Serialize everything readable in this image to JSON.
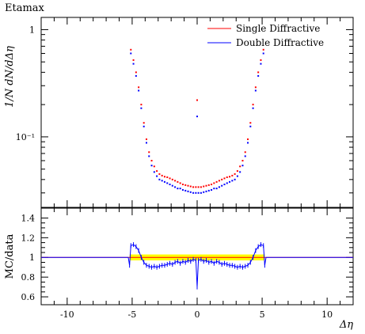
{
  "plot_title": "Etamax",
  "chart_data": [
    {
      "panel": "main",
      "type": "scatter",
      "ylabel": "1/N dN/dΔη",
      "xlim": [
        -12,
        12
      ],
      "ylim": [
        0.022,
        1.3
      ],
      "yscale": "log",
      "ytick_labels": [
        "1",
        "10⁻¹"
      ],
      "ytick_values": [
        1,
        0.1
      ],
      "legend_position": "top-right",
      "series": [
        {
          "name": "Single Diffractive",
          "color": "#ff0000",
          "x": [
            -5.1,
            -4.9,
            -4.7,
            -4.5,
            -4.3,
            -4.1,
            -3.9,
            -3.7,
            -3.5,
            -3.3,
            -3.1,
            -2.9,
            -2.7,
            -2.5,
            -2.3,
            -2.1,
            -1.9,
            -1.7,
            -1.5,
            -1.3,
            -1.1,
            -0.9,
            -0.7,
            -0.5,
            -0.3,
            -0.1,
            0.0,
            0.1,
            0.3,
            0.5,
            0.7,
            0.9,
            1.1,
            1.3,
            1.5,
            1.7,
            1.9,
            2.1,
            2.3,
            2.5,
            2.7,
            2.9,
            3.1,
            3.3,
            3.5,
            3.7,
            3.9,
            4.1,
            4.3,
            4.5,
            4.7,
            4.9,
            5.1
          ],
          "y": [
            0.65,
            0.52,
            0.4,
            0.29,
            0.2,
            0.135,
            0.095,
            0.072,
            0.06,
            0.053,
            0.048,
            0.045,
            0.0435,
            0.0425,
            0.042,
            0.041,
            0.04,
            0.039,
            0.038,
            0.037,
            0.036,
            0.0355,
            0.035,
            0.0345,
            0.034,
            0.034,
            0.22,
            0.034,
            0.034,
            0.0345,
            0.035,
            0.0355,
            0.036,
            0.037,
            0.038,
            0.039,
            0.04,
            0.041,
            0.042,
            0.0425,
            0.0435,
            0.045,
            0.048,
            0.053,
            0.06,
            0.072,
            0.095,
            0.135,
            0.2,
            0.29,
            0.4,
            0.52,
            0.65
          ]
        },
        {
          "name": "Double Diffractive",
          "color": "#0000ff",
          "x": [
            -5.1,
            -4.9,
            -4.7,
            -4.5,
            -4.3,
            -4.1,
            -3.9,
            -3.7,
            -3.5,
            -3.3,
            -3.1,
            -2.9,
            -2.7,
            -2.5,
            -2.3,
            -2.1,
            -1.9,
            -1.7,
            -1.5,
            -1.3,
            -1.1,
            -0.9,
            -0.7,
            -0.5,
            -0.3,
            -0.1,
            0.0,
            0.1,
            0.3,
            0.5,
            0.7,
            0.9,
            1.1,
            1.3,
            1.5,
            1.7,
            1.9,
            2.1,
            2.3,
            2.5,
            2.7,
            2.9,
            3.1,
            3.3,
            3.5,
            3.7,
            3.9,
            4.1,
            4.3,
            4.5,
            4.7,
            4.9,
            5.1
          ],
          "y": [
            0.6,
            0.48,
            0.37,
            0.27,
            0.185,
            0.125,
            0.088,
            0.066,
            0.054,
            0.047,
            0.043,
            0.04,
            0.039,
            0.038,
            0.037,
            0.036,
            0.035,
            0.034,
            0.033,
            0.033,
            0.032,
            0.0315,
            0.031,
            0.0305,
            0.03,
            0.03,
            0.155,
            0.03,
            0.03,
            0.0305,
            0.031,
            0.0315,
            0.032,
            0.033,
            0.033,
            0.034,
            0.035,
            0.036,
            0.037,
            0.038,
            0.039,
            0.04,
            0.043,
            0.047,
            0.054,
            0.066,
            0.088,
            0.125,
            0.185,
            0.27,
            0.37,
            0.48,
            0.6
          ]
        }
      ]
    },
    {
      "panel": "ratio",
      "type": "line",
      "ylabel": "MC/data",
      "xlabel": "Δη",
      "xlim": [
        -12,
        12
      ],
      "ylim": [
        0.52,
        1.5
      ],
      "ytick_values": [
        0.6,
        0.8,
        1.0,
        1.2,
        1.4
      ],
      "ytick_labels": [
        "0.6",
        "0.8",
        "1",
        "1.2",
        "1.4"
      ],
      "xtick_values": [
        -10,
        -5,
        0,
        5,
        10
      ],
      "xtick_labels": [
        "-10",
        "-5",
        "0",
        "5",
        "10"
      ],
      "band": {
        "color": "#ffff00",
        "x_range": [
          -5.2,
          5.2
        ],
        "low": 0.97,
        "high": 1.03
      },
      "series": [
        {
          "name": "Single Diffractive",
          "color": "#ff0000",
          "x": [
            -12,
            12
          ],
          "y": [
            1.0,
            1.0
          ]
        },
        {
          "name": "Double Diffractive",
          "color": "#0000ff",
          "x": [
            -12,
            -5.3,
            -5.2,
            -5.1,
            -4.9,
            -4.7,
            -4.5,
            -4.3,
            -4.1,
            -3.9,
            -3.7,
            -3.5,
            -3.3,
            -3.1,
            -2.9,
            -2.7,
            -2.5,
            -2.3,
            -2.1,
            -1.9,
            -1.7,
            -1.5,
            -1.3,
            -1.1,
            -0.9,
            -0.7,
            -0.5,
            -0.3,
            -0.1,
            0.0,
            0.1,
            0.3,
            0.5,
            0.7,
            0.9,
            1.1,
            1.3,
            1.5,
            1.7,
            1.9,
            2.1,
            2.3,
            2.5,
            2.7,
            2.9,
            3.1,
            3.3,
            3.5,
            3.7,
            3.9,
            4.1,
            4.3,
            4.5,
            4.7,
            4.9,
            5.1,
            5.2,
            5.3,
            12
          ],
          "y": [
            1.0,
            1.0,
            0.92,
            1.12,
            1.13,
            1.11,
            1.07,
            1.0,
            0.95,
            0.92,
            0.91,
            0.9,
            0.91,
            0.9,
            0.91,
            0.92,
            0.92,
            0.93,
            0.94,
            0.93,
            0.95,
            0.96,
            0.94,
            0.96,
            0.95,
            0.97,
            0.96,
            0.98,
            0.97,
            0.7,
            0.97,
            0.98,
            0.96,
            0.97,
            0.95,
            0.96,
            0.94,
            0.96,
            0.95,
            0.93,
            0.94,
            0.93,
            0.92,
            0.92,
            0.91,
            0.9,
            0.91,
            0.9,
            0.91,
            0.92,
            0.95,
            1.0,
            1.07,
            1.11,
            1.13,
            1.12,
            0.92,
            1.0,
            1.0
          ]
        }
      ]
    }
  ]
}
